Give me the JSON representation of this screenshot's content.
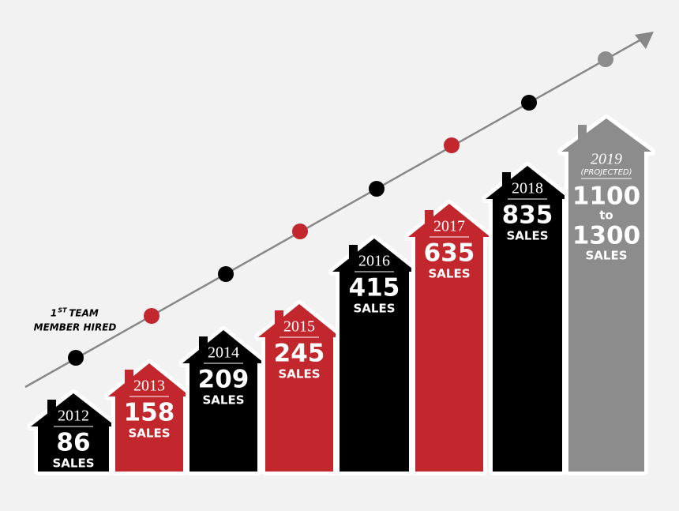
{
  "annotation": {
    "number": "1",
    "suffix": "ST",
    "word": "TEAM",
    "line2": "MEMBER HIRED"
  },
  "houses": [
    {
      "year": "2012",
      "value": "86",
      "unit": "SALES",
      "color": "#000000"
    },
    {
      "year": "2013",
      "value": "158",
      "unit": "SALES",
      "color": "#c1272d"
    },
    {
      "year": "2014",
      "value": "209",
      "unit": "SALES",
      "color": "#000000"
    },
    {
      "year": "2015",
      "value": "245",
      "unit": "SALES",
      "color": "#c1272d"
    },
    {
      "year": "2016",
      "value": "415",
      "unit": "SALES",
      "color": "#000000"
    },
    {
      "year": "2017",
      "value": "635",
      "unit": "SALES",
      "color": "#c1272d"
    },
    {
      "year": "2018",
      "value": "835",
      "unit": "SALES",
      "color": "#000000"
    },
    {
      "year": "2019",
      "note": "(PROJECTED)",
      "value": "1100",
      "connector": "to",
      "value_high": "1300",
      "unit": "SALES",
      "color": "#8c8c8c"
    }
  ]
}
